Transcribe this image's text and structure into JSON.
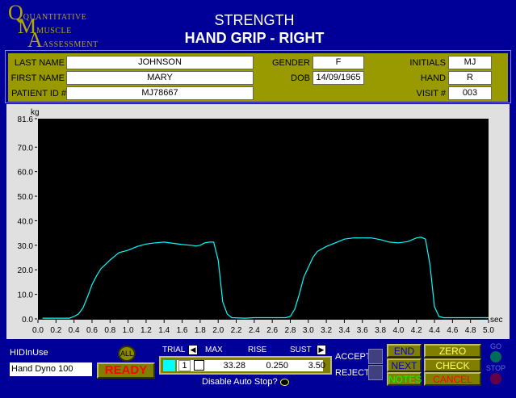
{
  "logo": {
    "line1": "QUANTITATIVE",
    "line2": "MUSCLE",
    "line3": "ASSESSMENT"
  },
  "header": {
    "title": "STRENGTH",
    "subtitle": "HAND GRIP - RIGHT"
  },
  "patient": {
    "last_name_label": "LAST NAME",
    "last_name": "JOHNSON",
    "first_name_label": "FIRST NAME",
    "first_name": "MARY",
    "patient_id_label": "PATIENT ID #",
    "patient_id": "MJ78667",
    "gender_label": "GENDER",
    "gender": "F",
    "dob_label": "DOB",
    "dob": "14/09/1965",
    "initials_label": "INITIALS",
    "initials": "MJ",
    "hand_label": "HAND",
    "hand": "R",
    "visit_label": "VISIT #",
    "visit": "003"
  },
  "chart_data": {
    "type": "line",
    "xlabel": "sec",
    "ylabel": "kg",
    "xlim": [
      0,
      5.0
    ],
    "ylim": [
      0,
      81.6
    ],
    "xticks": [
      "0.0",
      "0.2",
      "0.4",
      "0.6",
      "0.8",
      "1.0",
      "1.2",
      "1.4",
      "1.6",
      "1.8",
      "2.0",
      "2.2",
      "2.4",
      "2.6",
      "2.8",
      "3.0",
      "3.2",
      "3.4",
      "3.6",
      "3.8",
      "4.0",
      "4.2",
      "4.4",
      "4.6",
      "4.8",
      "5.0"
    ],
    "yticks": [
      "0.0",
      "10.0",
      "20.0",
      "30.0",
      "40.0",
      "50.0",
      "60.0",
      "70.0",
      "81.6"
    ],
    "line_color": "#00ffff",
    "background": "#000000",
    "x": [
      0.05,
      0.35,
      0.4,
      0.45,
      0.5,
      0.55,
      0.6,
      0.65,
      0.7,
      0.8,
      0.9,
      1.0,
      1.1,
      1.2,
      1.3,
      1.4,
      1.5,
      1.6,
      1.7,
      1.75,
      1.8,
      1.85,
      1.9,
      1.95,
      2.0,
      2.05,
      2.1,
      2.15,
      2.3,
      2.4,
      2.75,
      2.8,
      2.85,
      2.9,
      2.95,
      3.0,
      3.05,
      3.1,
      3.2,
      3.3,
      3.4,
      3.5,
      3.7,
      3.8,
      3.9,
      4.0,
      4.1,
      4.2,
      4.25,
      4.3,
      4.35,
      4.4,
      4.45,
      4.5,
      5.0
    ],
    "y": [
      0.3,
      0.3,
      1,
      2,
      4.5,
      9,
      14,
      17.5,
      20.5,
      24,
      27,
      28,
      29.5,
      30.5,
      31,
      31.3,
      30.8,
      30.3,
      30,
      29.7,
      30,
      31,
      31.3,
      31.3,
      24,
      7,
      2,
      0.5,
      0.3,
      0.5,
      0.5,
      1,
      4,
      10,
      17,
      21,
      25,
      27.5,
      29.5,
      31,
      32.5,
      33,
      33,
      32.3,
      31.3,
      31,
      31.5,
      33,
      33.3,
      32.5,
      22,
      5,
      1,
      0.5,
      0.5
    ]
  },
  "controls": {
    "device_label": "HIDInUse",
    "device": "Hand Dyno 100",
    "all": "ALL",
    "ready": "READY",
    "trial_label": "TRIAL",
    "max_label": "MAX",
    "rise_label": "RISE",
    "sust_label": "SUST",
    "trial": "1",
    "max": "33.28",
    "rise": "0.250",
    "sust": "3.50",
    "auto_stop": "Disable Auto Stop?",
    "accept": "ACCEPT",
    "reject": "REJECT",
    "end": "END",
    "next": "NEXT",
    "notes": "NOTES",
    "zero_test": "ZERO TEST",
    "check_zero": "CHECK ZERO",
    "cancel": "CANCEL",
    "go": "GO",
    "stop": "STOP"
  }
}
